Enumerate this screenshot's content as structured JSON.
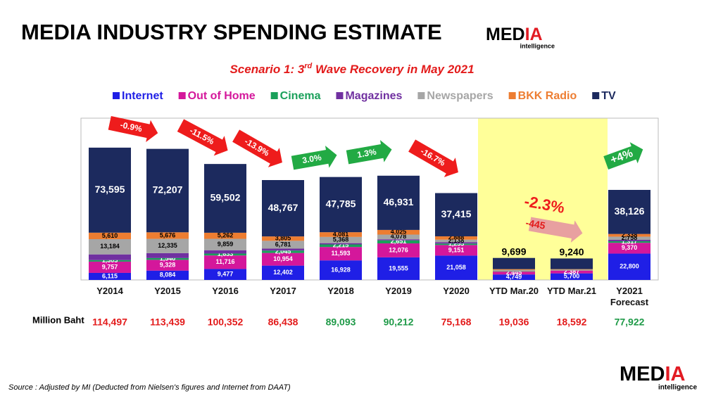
{
  "title": "MEDIA INDUSTRY SPENDING ESTIMATE",
  "logo": {
    "parts": [
      "MED",
      "IA"
    ],
    "sub": "intelligence"
  },
  "source": "Source :  Adjusted by MI (Deducted  from Nielsen's figures and Internet from DAAT)",
  "chart_data": {
    "type": "stacked_bar",
    "subtitle": [
      "Scenario 1: 3",
      "rd",
      " Wave Recovery in May 2021"
    ],
    "categories": [
      "Y2014",
      "Y2015",
      "Y2016",
      "Y2017",
      "Y2018",
      "Y2019",
      "Y2020",
      "YTD Mar.20",
      "YTD Mar.21",
      "Y2021 Forecast"
    ],
    "ylim": [
      0,
      140000
    ],
    "highlight_color": "#ffff99",
    "series": [
      {
        "name": "Internet",
        "color": "#1f1fe6",
        "values": [
          6115,
          8084,
          9477,
          12402,
          16928,
          19555,
          21058,
          4749,
          5700,
          22800
        ],
        "value_labels": [
          "6,115",
          "8,084",
          "9,477",
          "12,402",
          "16,928",
          "19,555",
          "21,058",
          "4,749",
          "5,700",
          "22,800"
        ]
      },
      {
        "name": "Out of Home",
        "color": "#d4179b",
        "values": [
          9757,
          9328,
          11716,
          10954,
          11593,
          12076,
          9151,
          2445,
          2387,
          9370
        ],
        "value_labels": [
          "9,757",
          "9,328",
          "11,716",
          "10,954",
          "11,593",
          "12,076",
          "9,151",
          "2,445",
          "2,387",
          "9,370"
        ]
      },
      {
        "name": "Cinema",
        "color": "#1aa05a",
        "values": [
          1305,
          1540,
          1633,
          2045,
          2215,
          2651,
          1255,
          300,
          50,
          1317
        ],
        "value_labels": [
          "1,305",
          "1,540",
          "1,633",
          "2,045",
          "2,215",
          "2,651",
          "1,255",
          null,
          null,
          "1,317"
        ]
      },
      {
        "name": "Magazines",
        "color": "#7030a0",
        "values": [
          4931,
          4269,
          2903,
          1684,
          1123,
          896,
          1263,
          200,
          150,
          1213
        ],
        "value_labels": [
          null,
          null,
          null,
          null,
          null,
          null,
          null,
          null,
          null,
          null
        ]
      },
      {
        "name": "Newspapers",
        "color": "#a6a6a6",
        "values": [
          13184,
          12335,
          9859,
          6781,
          5368,
          4078,
          2138,
          1000,
          700,
          2758
        ],
        "value_labels": [
          "13,184",
          "12,335",
          "9,859",
          "6,781",
          "5,368",
          "4,078",
          "2,138",
          null,
          null,
          "2,758"
        ]
      },
      {
        "name": "BKK Radio",
        "color": "#ed7d31",
        "values": [
          5610,
          5676,
          5262,
          3805,
          4081,
          4025,
          2888,
          643,
          365,
          2338
        ],
        "value_labels": [
          "5,610",
          "5,676",
          "5,262",
          "3,805",
          "4,081",
          "4,025",
          "2,888",
          null,
          null,
          "2,338"
        ]
      },
      {
        "name": "TV",
        "color": "#1c2a5e",
        "values": [
          73595,
          72207,
          59502,
          48767,
          47785,
          46931,
          37415,
          9699,
          9240,
          38126
        ],
        "value_labels": [
          "73,595",
          "72,207",
          "59,502",
          "48,767",
          "47,785",
          "46,931",
          "37,415",
          "9,699",
          "9,240",
          "38,126"
        ]
      }
    ],
    "totals_label": "Million Baht",
    "totals": [
      114497,
      113439,
      100352,
      86438,
      89093,
      90212,
      75168,
      19036,
      18592,
      77922
    ],
    "totals_value_labels": [
      "114,497",
      "113,439",
      "100,352",
      "86,438",
      "89,093",
      "90,212",
      "75,168",
      "19,036",
      "18,592",
      "77,922"
    ],
    "totals_colors": [
      "#e31b1b",
      "#e31b1b",
      "#e31b1b",
      "#e31b1b",
      "#1f9a48",
      "#1f9a48",
      "#e31b1b",
      "#e31b1b",
      "#e31b1b",
      "#1f9a48"
    ],
    "annotations": [
      {
        "text": "-0.9%",
        "color": "#ee1c1c"
      },
      {
        "text": "-11.5%",
        "color": "#ee1c1c"
      },
      {
        "text": "-13.9%",
        "color": "#ee1c1c"
      },
      {
        "text": "3.0%",
        "color": "#22aa44"
      },
      {
        "text": "1.3%",
        "color": "#22aa44"
      },
      {
        "text": "-16.7%",
        "color": "#ee1c1c"
      },
      {
        "text": "-2.3%",
        "color": "#ee1c1c"
      },
      {
        "text": "-445",
        "color": "#e8a0a0"
      },
      {
        "text": "+4%",
        "color": "#22aa44"
      }
    ]
  }
}
